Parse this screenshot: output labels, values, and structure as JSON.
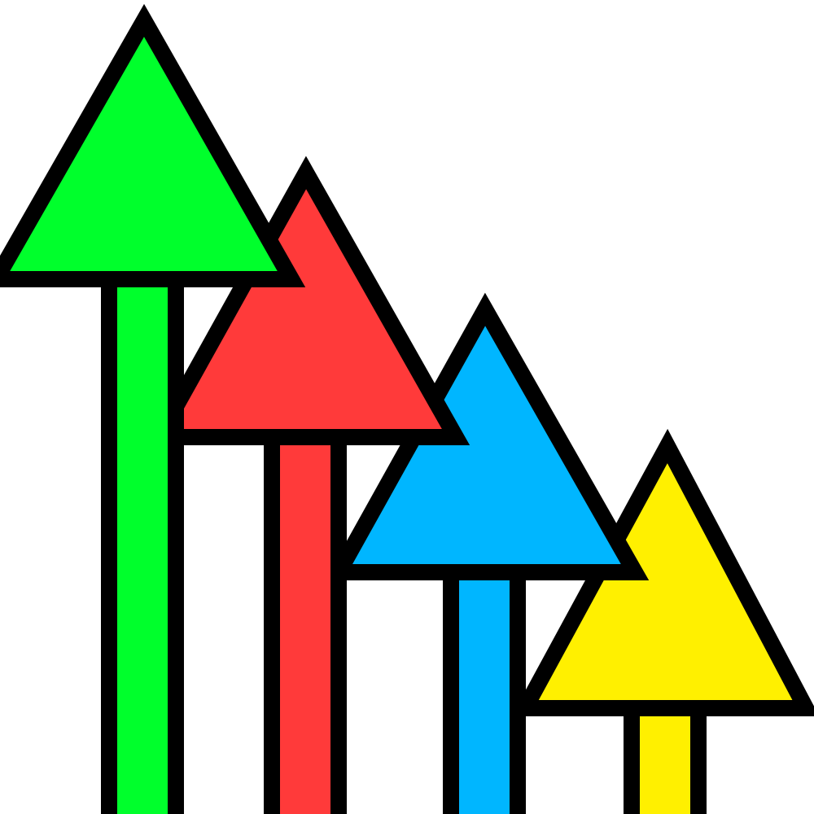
{
  "graphic": {
    "arrows": [
      {
        "name": "green-arrow",
        "color": "#00FF2C"
      },
      {
        "name": "red-arrow",
        "color": "#FF3A3A"
      },
      {
        "name": "blue-arrow",
        "color": "#00B6FF"
      },
      {
        "name": "yellow-arrow",
        "color": "#FFF000"
      }
    ],
    "outline_color": "#000000",
    "background_color": "#FFFFFF"
  }
}
